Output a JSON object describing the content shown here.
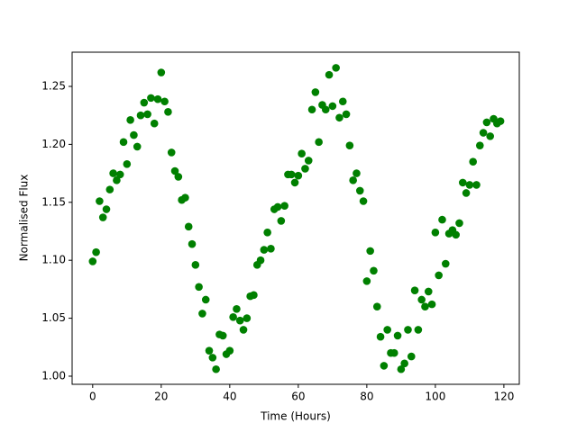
{
  "chart_data": {
    "type": "scatter",
    "xlabel": "Time (Hours)",
    "ylabel": "Normalised Flux",
    "color": "#008000",
    "x": [
      0,
      1,
      2,
      3,
      4,
      5,
      6,
      7,
      8,
      9,
      10,
      11,
      12,
      13,
      14,
      15,
      16,
      17,
      18,
      19,
      20,
      21,
      22,
      23,
      24,
      25,
      26,
      27,
      28,
      29,
      30,
      31,
      32,
      33,
      34,
      35,
      36,
      37,
      38,
      39,
      40,
      41,
      42,
      43,
      44,
      45,
      46,
      47,
      48,
      49,
      50,
      51,
      52,
      53,
      54,
      55,
      56,
      57,
      58,
      59,
      60,
      61,
      62,
      63,
      64,
      65,
      66,
      67,
      68,
      69,
      70,
      71,
      72,
      73,
      74,
      75,
      76,
      77,
      78,
      79,
      80,
      81,
      82,
      83,
      84,
      85,
      86,
      87,
      88,
      89,
      90,
      91,
      92,
      93,
      94,
      95,
      96,
      97,
      98,
      99,
      100,
      101,
      102,
      103,
      104,
      105,
      106,
      107,
      108,
      109,
      110,
      111,
      112,
      113,
      114,
      115,
      116,
      117,
      118,
      119
    ],
    "y": [
      1.099,
      1.107,
      1.151,
      1.137,
      1.144,
      1.161,
      1.175,
      1.169,
      1.174,
      1.202,
      1.183,
      1.221,
      1.208,
      1.198,
      1.225,
      1.236,
      1.226,
      1.24,
      1.218,
      1.239,
      1.262,
      1.237,
      1.228,
      1.193,
      1.177,
      1.172,
      1.152,
      1.154,
      1.129,
      1.114,
      1.096,
      1.077,
      1.054,
      1.066,
      1.022,
      1.016,
      1.006,
      1.036,
      1.035,
      1.019,
      1.022,
      1.051,
      1.058,
      1.048,
      1.04,
      1.05,
      1.069,
      1.07,
      1.096,
      1.1,
      1.109,
      1.124,
      1.11,
      1.144,
      1.146,
      1.134,
      1.147,
      1.174,
      1.174,
      1.167,
      1.173,
      1.192,
      1.179,
      1.186,
      1.23,
      1.245,
      1.202,
      1.234,
      1.23,
      1.26,
      1.233,
      1.266,
      1.223,
      1.237,
      1.226,
      1.199,
      1.169,
      1.175,
      1.16,
      1.151,
      1.082,
      1.108,
      1.091,
      1.06,
      1.034,
      1.009,
      1.04,
      1.02,
      1.02,
      1.035,
      1.006,
      1.011,
      1.04,
      1.017,
      1.074,
      1.04,
      1.066,
      1.06,
      1.073,
      1.062,
      1.124,
      1.087,
      1.135,
      1.097,
      1.123,
      1.126,
      1.122,
      1.132,
      1.167,
      1.158,
      1.165,
      1.185,
      1.165,
      1.199,
      1.21,
      1.219,
      1.207,
      1.222,
      1.218,
      1.22
    ],
    "xlim": [
      -6,
      124.5
    ],
    "ylim": [
      0.993,
      1.2795
    ],
    "xticks": [
      0,
      20,
      40,
      60,
      80,
      100,
      120
    ],
    "yticks": [
      {
        "value": 1.0,
        "label": "1.00"
      },
      {
        "value": 1.05,
        "label": "1.05"
      },
      {
        "value": 1.1,
        "label": "1.10"
      },
      {
        "value": 1.15,
        "label": "1.15"
      },
      {
        "value": 1.2,
        "label": "1.20"
      },
      {
        "value": 1.25,
        "label": "1.25"
      }
    ]
  }
}
